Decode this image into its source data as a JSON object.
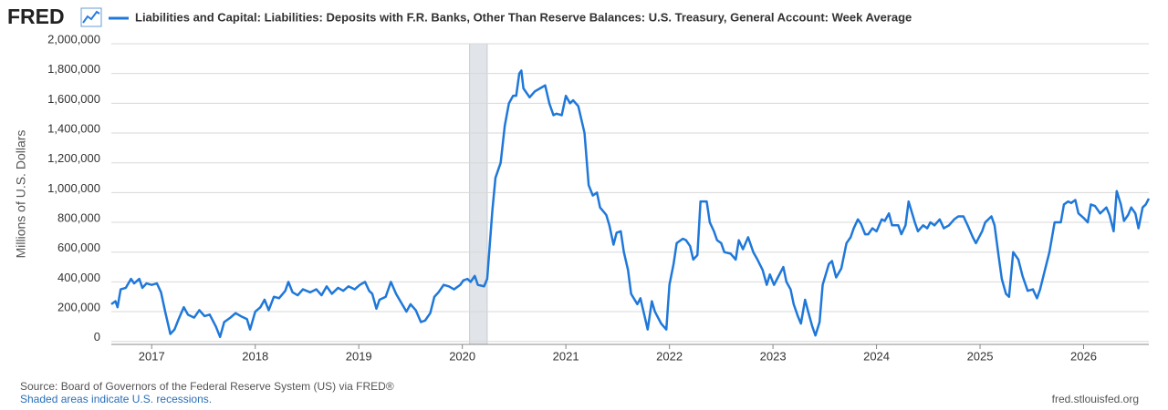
{
  "logo": "FRED",
  "chart_data": {
    "type": "line",
    "ylabel": "Millions of U.S. Dollars",
    "source": "Source: Board of Governors of the Federal Reserve System (US) via FRED®",
    "note": "Shaded areas indicate U.S. recessions.",
    "site": "fred.stlouisfed.org",
    "recessions": [
      [
        2020.07,
        2020.24
      ]
    ],
    "xlim": [
      2016.61,
      2026.63
    ],
    "xticks": [
      2017,
      2018,
      2019,
      2020,
      2021,
      2022,
      2023,
      2024,
      2025,
      2026
    ],
    "ylim": [
      -20000,
      2000000
    ],
    "yticks": [
      0,
      {
        "value": 200000,
        "label": "200,000"
      },
      {
        "value": 400000,
        "label": "400,000"
      },
      {
        "value": 600000,
        "label": "600,000"
      },
      {
        "value": 800000,
        "label": "800,000"
      },
      {
        "value": 1000000,
        "label": "1,000,000"
      },
      {
        "value": 1200000,
        "label": "1,200,000"
      },
      {
        "value": 1400000,
        "label": "1,400,000"
      },
      {
        "value": 1600000,
        "label": "1,600,000"
      },
      {
        "value": 1800000,
        "label": "1,800,000"
      },
      {
        "value": 2000000,
        "label": "2,000,000"
      }
    ],
    "grid": true,
    "x": [
      2016.61,
      2016.65,
      2016.67,
      2016.7,
      2016.75,
      2016.8,
      2016.83,
      2016.88,
      2016.91,
      2016.95,
      2017.0,
      2017.05,
      2017.09,
      2017.13,
      2017.18,
      2017.22,
      2017.26,
      2017.31,
      2017.35,
      2017.41,
      2017.46,
      2017.51,
      2017.56,
      2017.62,
      2017.66,
      2017.7,
      2017.76,
      2017.81,
      2017.86,
      2017.92,
      2017.95,
      2018.0,
      2018.05,
      2018.09,
      2018.13,
      2018.18,
      2018.23,
      2018.29,
      2018.32,
      2018.36,
      2018.41,
      2018.46,
      2018.53,
      2018.59,
      2018.64,
      2018.69,
      2018.74,
      2018.8,
      2018.85,
      2018.9,
      2018.96,
      2019.01,
      2019.06,
      2019.1,
      2019.13,
      2019.17,
      2019.2,
      2019.26,
      2019.31,
      2019.36,
      2019.41,
      2019.46,
      2019.5,
      2019.55,
      2019.6,
      2019.64,
      2019.69,
      2019.73,
      2019.77,
      2019.82,
      2019.87,
      2019.92,
      2019.98,
      2020.01,
      2020.05,
      2020.08,
      2020.12,
      2020.15,
      2020.21,
      2020.24,
      2020.29,
      2020.32,
      2020.37,
      2020.41,
      2020.45,
      2020.49,
      2020.52,
      2020.55,
      2020.57,
      2020.59,
      2020.65,
      2020.7,
      2020.75,
      2020.8,
      2020.84,
      2020.88,
      2020.91,
      2020.96,
      2021.0,
      2021.04,
      2021.07,
      2021.12,
      2021.18,
      2021.22,
      2021.26,
      2021.3,
      2021.33,
      2021.39,
      2021.42,
      2021.46,
      2021.49,
      2021.53,
      2021.56,
      2021.6,
      2021.63,
      2021.69,
      2021.72,
      2021.76,
      2021.79,
      2021.83,
      2021.86,
      2021.92,
      2021.97,
      2022.0,
      2022.04,
      2022.07,
      2022.13,
      2022.16,
      2022.2,
      2022.23,
      2022.27,
      2022.3,
      2022.36,
      2022.39,
      2022.43,
      2022.46,
      2022.5,
      2022.53,
      2022.59,
      2022.64,
      2022.67,
      2022.71,
      2022.76,
      2022.81,
      2022.85,
      2022.9,
      2022.94,
      2022.97,
      2023.01,
      2023.04,
      2023.1,
      2023.13,
      2023.17,
      2023.2,
      2023.24,
      2023.27,
      2023.31,
      2023.34,
      2023.38,
      2023.41,
      2023.45,
      2023.48,
      2023.54,
      2023.57,
      2023.61,
      2023.66,
      2023.71,
      2023.75,
      2023.78,
      2023.82,
      2023.85,
      2023.89,
      2023.92,
      2023.96,
      2024.0,
      2024.05,
      2024.08,
      2024.12,
      2024.15,
      2024.21,
      2024.24,
      2024.28,
      2024.31,
      2024.37,
      2024.4,
      2024.45,
      2024.49,
      2024.52,
      2024.56,
      2024.61,
      2024.65,
      2024.7,
      2024.75,
      2024.79,
      2024.84,
      2024.88,
      2024.93,
      2024.96,
      2025.02,
      2025.05,
      2025.11,
      2025.14,
      2025.18,
      2025.21,
      2025.25,
      2025.28,
      2025.32,
      2025.37,
      2025.41,
      2025.46,
      2025.51,
      2025.55,
      2025.58,
      2025.63,
      2025.67,
      2025.72,
      2025.78,
      2025.81,
      2025.85,
      2025.88,
      2025.92,
      2025.95,
      2026.0,
      2026.04,
      2026.07,
      2026.11,
      2026.16,
      2026.22,
      2026.25,
      2026.29,
      2026.32,
      2026.36,
      2026.39,
      2026.43,
      2026.46,
      2026.5,
      2026.53,
      2026.57,
      2026.6,
      2026.63
    ],
    "series": [
      {
        "name": "Liabilities and Capital: Liabilities: Deposits with F.R. Banks, Other Than Reserve Balances: U.S. Treasury, General Account: Week Average",
        "color": "#1f78d9",
        "values": [
          250000,
          270000,
          230000,
          350000,
          360000,
          420000,
          390000,
          420000,
          360000,
          390000,
          380000,
          390000,
          330000,
          200000,
          50000,
          80000,
          150000,
          230000,
          180000,
          160000,
          210000,
          170000,
          180000,
          100000,
          30000,
          130000,
          160000,
          190000,
          170000,
          150000,
          80000,
          200000,
          230000,
          280000,
          210000,
          300000,
          290000,
          340000,
          400000,
          330000,
          310000,
          350000,
          330000,
          350000,
          310000,
          370000,
          320000,
          360000,
          340000,
          370000,
          350000,
          380000,
          400000,
          340000,
          320000,
          220000,
          280000,
          300000,
          400000,
          320000,
          260000,
          200000,
          250000,
          210000,
          130000,
          140000,
          190000,
          300000,
          330000,
          380000,
          370000,
          350000,
          380000,
          410000,
          420000,
          400000,
          440000,
          380000,
          370000,
          420000,
          880000,
          1100000,
          1200000,
          1450000,
          1600000,
          1650000,
          1650000,
          1800000,
          1820000,
          1700000,
          1640000,
          1680000,
          1700000,
          1720000,
          1600000,
          1520000,
          1530000,
          1520000,
          1650000,
          1600000,
          1620000,
          1580000,
          1400000,
          1050000,
          980000,
          1000000,
          900000,
          850000,
          780000,
          650000,
          730000,
          740000,
          600000,
          480000,
          320000,
          250000,
          290000,
          170000,
          80000,
          270000,
          200000,
          120000,
          80000,
          380000,
          520000,
          660000,
          690000,
          680000,
          640000,
          550000,
          580000,
          940000,
          940000,
          800000,
          740000,
          680000,
          660000,
          600000,
          590000,
          550000,
          680000,
          620000,
          700000,
          600000,
          550000,
          480000,
          380000,
          450000,
          380000,
          420000,
          500000,
          400000,
          350000,
          250000,
          170000,
          120000,
          280000,
          200000,
          100000,
          40000,
          130000,
          380000,
          520000,
          540000,
          430000,
          490000,
          660000,
          700000,
          760000,
          820000,
          790000,
          720000,
          720000,
          760000,
          740000,
          820000,
          810000,
          860000,
          780000,
          780000,
          720000,
          780000,
          940000,
          800000,
          740000,
          780000,
          760000,
          800000,
          780000,
          820000,
          760000,
          780000,
          820000,
          840000,
          840000,
          780000,
          700000,
          660000,
          740000,
          800000,
          840000,
          780000,
          570000,
          420000,
          320000,
          300000,
          600000,
          550000,
          440000,
          340000,
          350000,
          290000,
          350000,
          490000,
          600000,
          800000,
          800000,
          920000,
          940000,
          930000,
          950000,
          860000,
          830000,
          800000,
          920000,
          910000,
          860000,
          900000,
          850000,
          740000,
          1010000,
          920000,
          810000,
          850000,
          900000,
          860000,
          760000,
          900000,
          920000,
          960000
        ]
      }
    ]
  }
}
